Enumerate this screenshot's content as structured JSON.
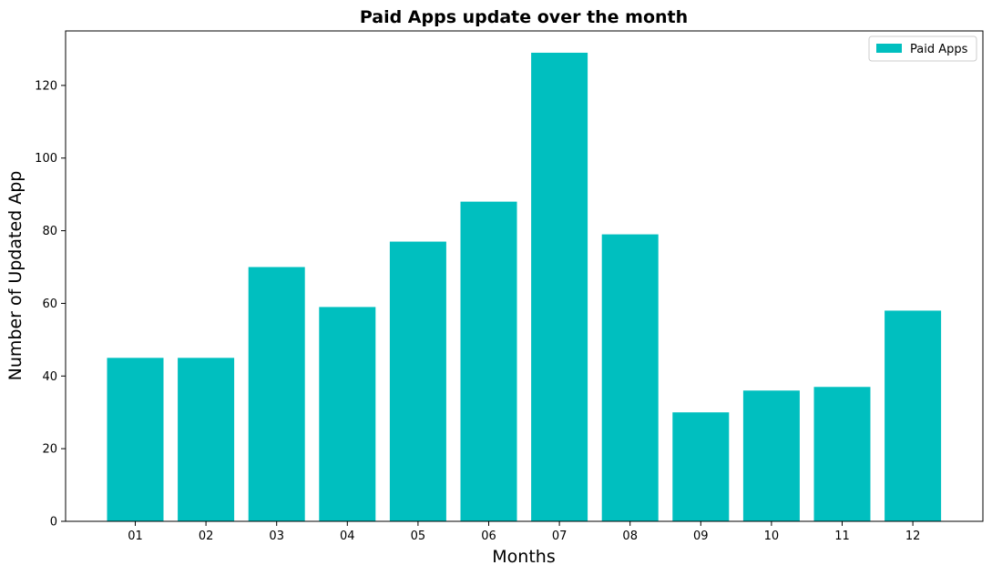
{
  "chart_data": {
    "type": "bar",
    "title": "Paid Apps update over the month",
    "xlabel": "Months",
    "ylabel": "Number of Updated App",
    "categories": [
      "01",
      "02",
      "03",
      "04",
      "05",
      "06",
      "07",
      "08",
      "09",
      "10",
      "11",
      "12"
    ],
    "series": [
      {
        "name": "Paid Apps",
        "values": [
          45,
          45,
          70,
          59,
          77,
          88,
          129,
          79,
          30,
          36,
          37,
          58
        ],
        "color": "#00bfbf"
      }
    ],
    "ylim": [
      0,
      135
    ],
    "yticks": [
      0,
      20,
      40,
      60,
      80,
      100,
      120
    ],
    "grid": false,
    "legend_position": "top-right"
  }
}
